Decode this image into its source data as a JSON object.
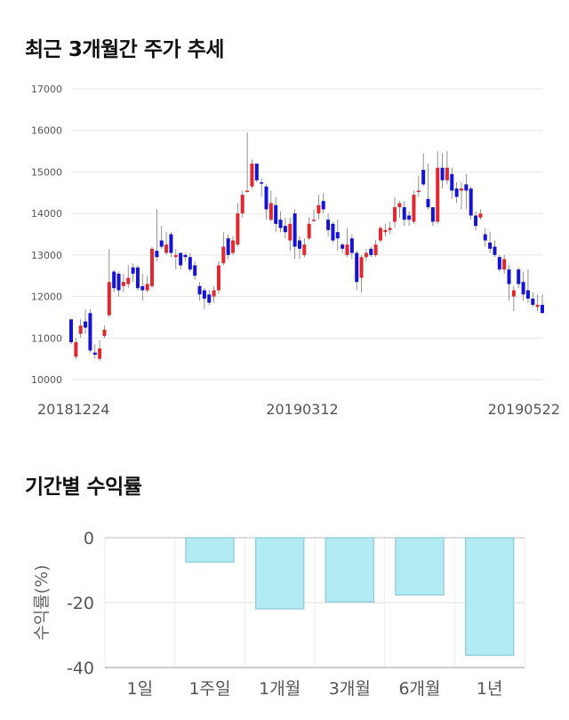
{
  "sections": {
    "price_title": "최근 3개월간 주가 추세",
    "return_title": "기간별 수익률"
  },
  "colors": {
    "up": "#e0282e",
    "down": "#1414d2",
    "bar_fill": "#b3ebf4",
    "bar_stroke": "#98cfdc",
    "grid": "#e6e6e6"
  },
  "chart_data": [
    {
      "type": "candlestick",
      "title": "최근 3개월간 주가 추세",
      "ylim": [
        10000,
        17000
      ],
      "yticks": [
        "17000",
        "16000",
        "15000",
        "14000",
        "13000",
        "12000",
        "11000",
        "10000"
      ],
      "xticks": [
        "20181224",
        "20190312",
        "20190522"
      ],
      "candles": [
        [
          11450,
          10900,
          11450,
          10850,
          "down"
        ],
        [
          10550,
          10900,
          11000,
          10500,
          "up"
        ],
        [
          11100,
          11300,
          11450,
          11000,
          "up"
        ],
        [
          11400,
          11250,
          11700,
          11100,
          "down"
        ],
        [
          11600,
          10700,
          11700,
          10650,
          "down"
        ],
        [
          10650,
          10600,
          10850,
          10500,
          "down"
        ],
        [
          10500,
          10750,
          10950,
          10450,
          "up"
        ],
        [
          11050,
          11200,
          11300,
          11000,
          "up"
        ],
        [
          11550,
          12350,
          13150,
          11500,
          "up"
        ],
        [
          12600,
          12200,
          12650,
          12100,
          "down"
        ],
        [
          12550,
          12150,
          12600,
          12000,
          "down"
        ],
        [
          12250,
          12350,
          12550,
          12100,
          "up"
        ],
        [
          12300,
          12450,
          12750,
          12200,
          "up"
        ],
        [
          12700,
          12550,
          12800,
          12350,
          "down"
        ],
        [
          12700,
          12200,
          12750,
          12150,
          "down"
        ],
        [
          12250,
          12150,
          12550,
          11900,
          "down"
        ],
        [
          12150,
          12300,
          12500,
          12100,
          "up"
        ],
        [
          12250,
          13150,
          13200,
          12200,
          "up"
        ],
        [
          13100,
          12950,
          14100,
          12850,
          "down"
        ],
        [
          13350,
          13200,
          13700,
          13150,
          "down"
        ],
        [
          13050,
          13250,
          13550,
          13000,
          "up"
        ],
        [
          13500,
          13050,
          13550,
          12950,
          "down"
        ],
        [
          12950,
          13000,
          13150,
          12650,
          "up"
        ],
        [
          13050,
          12750,
          13050,
          12650,
          "down"
        ],
        [
          13000,
          12950,
          13050,
          12850,
          "down"
        ],
        [
          12950,
          12650,
          13050,
          12600,
          "down"
        ],
        [
          12750,
          12500,
          12850,
          12400,
          "down"
        ],
        [
          12250,
          12050,
          12350,
          11900,
          "down"
        ],
        [
          12150,
          11950,
          12200,
          11700,
          "down"
        ],
        [
          12050,
          11850,
          12150,
          11800,
          "down"
        ],
        [
          12000,
          12150,
          12250,
          11850,
          "up"
        ],
        [
          12150,
          12750,
          12850,
          12050,
          "up"
        ],
        [
          12800,
          13200,
          13550,
          12750,
          "up"
        ],
        [
          13400,
          13000,
          13500,
          12900,
          "down"
        ],
        [
          13050,
          13350,
          13450,
          13000,
          "up"
        ],
        [
          13250,
          14000,
          14250,
          13200,
          "up"
        ],
        [
          14000,
          14450,
          14550,
          13900,
          "up"
        ],
        [
          14550,
          14550,
          15950,
          14500,
          "up"
        ],
        [
          14650,
          15200,
          15300,
          14600,
          "up"
        ],
        [
          15200,
          14800,
          15200,
          14750,
          "down"
        ],
        [
          14750,
          14750,
          14850,
          14400,
          "down"
        ],
        [
          14650,
          14100,
          14700,
          13850,
          "down"
        ],
        [
          13850,
          14250,
          14550,
          13800,
          "up"
        ],
        [
          14200,
          13750,
          14400,
          13550,
          "down"
        ],
        [
          13850,
          13650,
          14050,
          13550,
          "down"
        ],
        [
          13700,
          13550,
          13900,
          13400,
          "down"
        ],
        [
          13350,
          13750,
          13900,
          13100,
          "up"
        ],
        [
          14000,
          13200,
          14100,
          12900,
          "down"
        ],
        [
          13350,
          13150,
          13450,
          12900,
          "down"
        ],
        [
          13000,
          13250,
          13400,
          12950,
          "up"
        ],
        [
          13400,
          13750,
          13900,
          13350,
          "up"
        ],
        [
          13850,
          13850,
          14100,
          13800,
          "up"
        ],
        [
          14000,
          14200,
          14450,
          13850,
          "up"
        ],
        [
          14300,
          14100,
          14500,
          14000,
          "down"
        ],
        [
          13850,
          13600,
          14000,
          13450,
          "down"
        ],
        [
          13750,
          13350,
          13800,
          13300,
          "down"
        ],
        [
          13550,
          13400,
          13850,
          13100,
          "down"
        ],
        [
          13150,
          13250,
          13300,
          13050,
          "down"
        ],
        [
          13250,
          13000,
          13650,
          12950,
          "up"
        ],
        [
          13400,
          13050,
          13500,
          12900,
          "down"
        ],
        [
          13050,
          12350,
          13100,
          12150,
          "down"
        ],
        [
          12450,
          12950,
          13000,
          12100,
          "up"
        ],
        [
          12950,
          13050,
          13150,
          12850,
          "up"
        ],
        [
          13150,
          13000,
          13200,
          12950,
          "down"
        ],
        [
          13000,
          13250,
          13350,
          12950,
          "up"
        ],
        [
          13350,
          13650,
          13700,
          13300,
          "up"
        ],
        [
          13550,
          13600,
          13750,
          13450,
          "up"
        ],
        [
          13600,
          13650,
          13800,
          13500,
          "up"
        ],
        [
          13800,
          14150,
          14400,
          13650,
          "up"
        ],
        [
          14150,
          14250,
          14300,
          13900,
          "up"
        ],
        [
          14150,
          13850,
          14300,
          13700,
          "down"
        ],
        [
          13950,
          13850,
          14050,
          13700,
          "down"
        ],
        [
          13800,
          14450,
          14550,
          13750,
          "up"
        ],
        [
          14550,
          14550,
          14900,
          14400,
          "up"
        ],
        [
          15050,
          14700,
          15450,
          14650,
          "down"
        ],
        [
          14350,
          14150,
          15200,
          14100,
          "down"
        ],
        [
          14150,
          13800,
          14150,
          13700,
          "down"
        ],
        [
          13800,
          15100,
          15500,
          13750,
          "up"
        ],
        [
          15100,
          14800,
          15450,
          14600,
          "down"
        ],
        [
          14800,
          15100,
          15500,
          14700,
          "up"
        ],
        [
          14950,
          14550,
          15100,
          14350,
          "down"
        ],
        [
          14600,
          14400,
          14750,
          14250,
          "down"
        ],
        [
          14600,
          14550,
          14750,
          14100,
          "up"
        ],
        [
          14700,
          14550,
          14950,
          14100,
          "down"
        ],
        [
          14600,
          13950,
          14650,
          13850,
          "down"
        ],
        [
          13950,
          13700,
          14050,
          13600,
          "down"
        ],
        [
          13900,
          14000,
          14100,
          13850,
          "up"
        ],
        [
          13500,
          13350,
          13650,
          13200,
          "down"
        ],
        [
          13300,
          13150,
          13550,
          13050,
          "down"
        ],
        [
          13200,
          13000,
          13350,
          12950,
          "down"
        ],
        [
          12950,
          12650,
          13000,
          12600,
          "down"
        ],
        [
          12650,
          12900,
          13000,
          12550,
          "up"
        ],
        [
          12650,
          12300,
          12750,
          11900,
          "down"
        ],
        [
          12000,
          12150,
          12250,
          11650,
          "up"
        ],
        [
          12650,
          12300,
          12700,
          12200,
          "down"
        ],
        [
          12350,
          12050,
          12600,
          11900,
          "down"
        ],
        [
          12150,
          11950,
          12650,
          11850,
          "down"
        ],
        [
          11950,
          11800,
          12100,
          11750,
          "down"
        ],
        [
          11750,
          11800,
          12050,
          11650,
          "up"
        ],
        [
          11800,
          11600,
          12050,
          11600,
          "down"
        ]
      ]
    },
    {
      "type": "bar",
      "title": "기간별 수익률",
      "ylabel": "수익률(%)",
      "ylim": [
        -40,
        0
      ],
      "yticks": [
        "0",
        "-20",
        "-40"
      ],
      "categories": [
        "1일",
        "1주일",
        "1개월",
        "3개월",
        "6개월",
        "1년"
      ],
      "values": [
        0,
        -7.5,
        -21.9,
        -19.8,
        -17.6,
        -36.2
      ]
    }
  ]
}
